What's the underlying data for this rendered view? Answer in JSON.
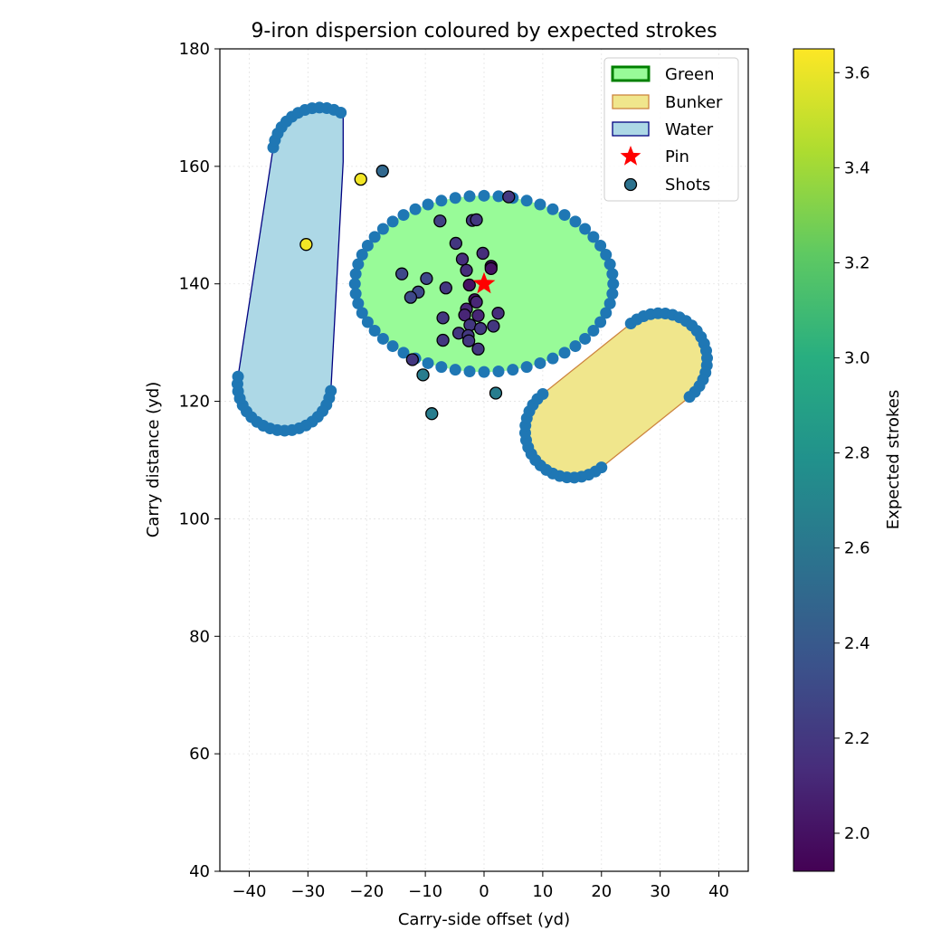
{
  "chart_data": {
    "type": "scatter",
    "title": "9-iron dispersion coloured by expected strokes",
    "xlabel": "Carry-side offset (yd)",
    "ylabel": "Carry distance (yd)",
    "xlim": [
      -45,
      45
    ],
    "ylim": [
      40,
      180
    ],
    "x_ticks": [
      "−40",
      "−30",
      "−20",
      "−10",
      "0",
      "10",
      "20",
      "30",
      "40"
    ],
    "y_ticks": [
      "40",
      "60",
      "80",
      "100",
      "120",
      "140",
      "160",
      "180"
    ],
    "grid": true,
    "legend_position": "top-right",
    "legend": [
      "Green",
      "Bunker",
      "Water",
      "Pin",
      "Shots"
    ],
    "colorbar": {
      "label": "Expected strokes",
      "range": [
        1.92,
        3.65
      ],
      "ticks": [
        "2.0",
        "2.2",
        "2.4",
        "2.6",
        "2.8",
        "3.0",
        "3.2",
        "3.4",
        "3.6"
      ],
      "colormap": "viridis"
    },
    "colors": {
      "green_fill": "#98fb98",
      "green_edge": "#008000",
      "bunker_fill": "#f0e68c",
      "bunker_edge": "#cd853f",
      "water_fill": "#add8e6",
      "water_edge": "#000080",
      "boundary_points": "#1f77b4",
      "pin": "#ff0000"
    },
    "pin": {
      "x": 0,
      "y": 140
    },
    "green": {
      "type": "ellipse",
      "center_x": 0,
      "center_y": 140,
      "radius_x": 22,
      "radius_y": 15
    },
    "bunker": {
      "type": "stadium",
      "start": [
        15,
        115
      ],
      "end": [
        30,
        127
      ],
      "radius": 8
    },
    "water": {
      "type": "stadium_hull",
      "start": [
        -34,
        123
      ],
      "end": [
        -28,
        162
      ],
      "radius": 8,
      "clip_x": [
        -44,
        -24
      ]
    },
    "shots": [
      {
        "x": -21,
        "y": 157.8,
        "v": 3.62
      },
      {
        "x": -17.3,
        "y": 159.2,
        "v": 2.5
      },
      {
        "x": -30.3,
        "y": 146.7,
        "v": 3.62
      },
      {
        "x": 4.2,
        "y": 154.8,
        "v": 2.2
      },
      {
        "x": -7.5,
        "y": 150.7,
        "v": 2.25
      },
      {
        "x": -2.0,
        "y": 150.8,
        "v": 2.2
      },
      {
        "x": -1.3,
        "y": 150.9,
        "v": 2.2
      },
      {
        "x": -4.8,
        "y": 146.9,
        "v": 2.2
      },
      {
        "x": -0.2,
        "y": 145.2,
        "v": 2.15
      },
      {
        "x": -3.7,
        "y": 144.2,
        "v": 2.15
      },
      {
        "x": -3.0,
        "y": 142.3,
        "v": 2.15
      },
      {
        "x": 1.2,
        "y": 143.0,
        "v": 2.0
      },
      {
        "x": 1.2,
        "y": 142.6,
        "v": 2.0
      },
      {
        "x": -14.0,
        "y": 141.7,
        "v": 2.3
      },
      {
        "x": -11.2,
        "y": 138.6,
        "v": 2.3
      },
      {
        "x": -12.5,
        "y": 137.7,
        "v": 2.3
      },
      {
        "x": -9.8,
        "y": 140.9,
        "v": 2.3
      },
      {
        "x": -6.5,
        "y": 139.3,
        "v": 2.2
      },
      {
        "x": -2.5,
        "y": 139.8,
        "v": 2.0
      },
      {
        "x": -1.6,
        "y": 137.3,
        "v": 2.0
      },
      {
        "x": -1.3,
        "y": 136.9,
        "v": 2.1
      },
      {
        "x": -3.0,
        "y": 135.7,
        "v": 2.1
      },
      {
        "x": -3.3,
        "y": 134.7,
        "v": 2.1
      },
      {
        "x": -1.0,
        "y": 134.6,
        "v": 2.1
      },
      {
        "x": 2.4,
        "y": 135.0,
        "v": 2.15
      },
      {
        "x": -7.0,
        "y": 134.2,
        "v": 2.2
      },
      {
        "x": -2.4,
        "y": 133.0,
        "v": 2.2
      },
      {
        "x": 1.6,
        "y": 132.8,
        "v": 2.2
      },
      {
        "x": -0.6,
        "y": 132.4,
        "v": 2.2
      },
      {
        "x": -4.3,
        "y": 131.6,
        "v": 2.2
      },
      {
        "x": -2.7,
        "y": 131.2,
        "v": 2.2
      },
      {
        "x": -2.6,
        "y": 130.3,
        "v": 2.2
      },
      {
        "x": -7.0,
        "y": 130.4,
        "v": 2.2
      },
      {
        "x": -1.0,
        "y": 128.9,
        "v": 2.2
      },
      {
        "x": -12.2,
        "y": 127.1,
        "v": 2.2
      },
      {
        "x": -10.4,
        "y": 124.5,
        "v": 2.65
      },
      {
        "x": 2.0,
        "y": 121.4,
        "v": 2.65
      },
      {
        "x": -8.9,
        "y": 117.9,
        "v": 2.65
      }
    ]
  }
}
